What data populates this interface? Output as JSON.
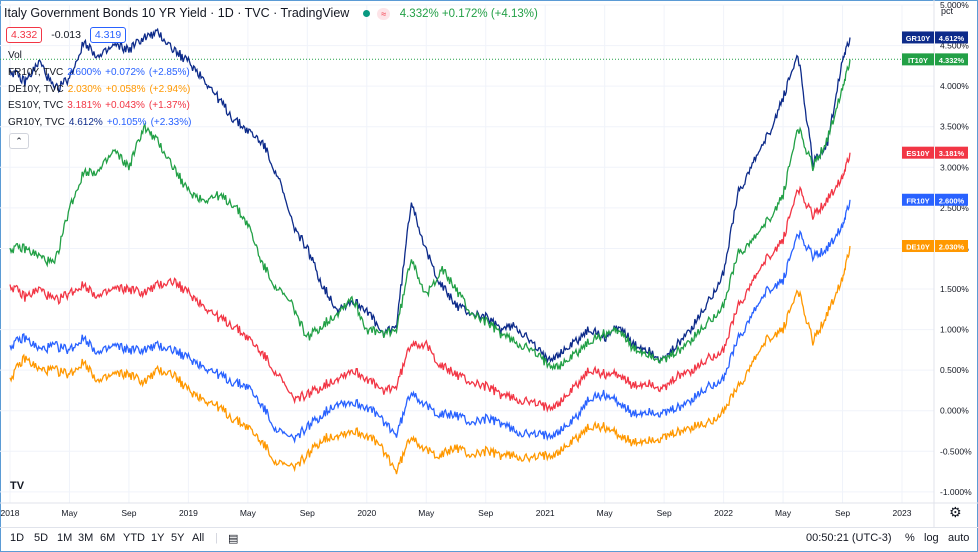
{
  "header": {
    "title": "Italy Government Bonds 10 YR Yield · 1D · TVC · TradingView",
    "last_change": "4.332% +0.172% (+4.13%)",
    "badge": "≈"
  },
  "trade": {
    "sell": "4.332",
    "spread": "-0.013",
    "buy": "4.319"
  },
  "legend": {
    "vol": "Vol",
    "rows": [
      {
        "sym": "FR10Y, TVC",
        "val": "2.600%",
        "chg": "+0.072%",
        "pct": "(+2.85%)",
        "color": "#2962ff"
      },
      {
        "sym": "DE10Y, TVC",
        "val": "2.030%",
        "chg": "+0.058%",
        "pct": "(+2.94%)",
        "color": "#ff9800"
      },
      {
        "sym": "ES10Y, TVC",
        "val": "3.181%",
        "chg": "+0.043%",
        "pct": "(+1.37%)",
        "color": "#f23645"
      },
      {
        "sym": "GR10Y, TVC",
        "val": "4.612%",
        "chg": "+0.105%",
        "pct": "(+2.33%)",
        "color": "#0d2b8a"
      }
    ]
  },
  "collapse_icon": "chevron-up",
  "logo": "TV",
  "bottom": {
    "timeframes": [
      "1D",
      "5D",
      "1M",
      "3M",
      "6M",
      "YTD",
      "1Y",
      "5Y",
      "All"
    ],
    "clock": "00:50:21 (UTC-3)",
    "pct": "%",
    "log": "log",
    "auto": "auto"
  },
  "chart_data": {
    "type": "line",
    "yunit": "pct",
    "ylim": [
      -1.1,
      5.0
    ],
    "yticks": [
      "5.000%",
      "4.500%",
      "4.000%",
      "3.500%",
      "3.000%",
      "2.500%",
      "2.000%",
      "1.500%",
      "1.000%",
      "0.500%",
      "0.000%",
      "-0.500%",
      "-1.000%"
    ],
    "ytick_values": [
      5.0,
      4.5,
      4.0,
      3.5,
      3.0,
      2.5,
      2.0,
      1.5,
      1.0,
      0.5,
      0.0,
      -0.5,
      -1.0
    ],
    "xticks": [
      "2018",
      "May",
      "Sep",
      "2019",
      "May",
      "Sep",
      "2020",
      "May",
      "Sep",
      "2021",
      "May",
      "Sep",
      "2022",
      "May",
      "Sep",
      "2023"
    ],
    "xtick_months": [
      0,
      4,
      8,
      12,
      16,
      20,
      24,
      28,
      32,
      36,
      40,
      44,
      48,
      52,
      56,
      60
    ],
    "xlim": [
      0,
      60
    ],
    "grid": true,
    "price_line": 4.332,
    "series": [
      {
        "name": "GR10Y",
        "label": "4.612%",
        "color": "#0d2b8a",
        "x": [
          0,
          1,
          2,
          3,
          4,
          5,
          6,
          7,
          8,
          9,
          10,
          11,
          12,
          13,
          14,
          15,
          16,
          17,
          18,
          19,
          20,
          21,
          22,
          23,
          24,
          25,
          26,
          27,
          28,
          29,
          30,
          31,
          32,
          33,
          34,
          35,
          36,
          37,
          38,
          39,
          40,
          41,
          42,
          43,
          44,
          45,
          46,
          47,
          48,
          49,
          50,
          51,
          52,
          53,
          54,
          55,
          56,
          56.5
        ],
        "y": [
          4.2,
          4.05,
          4.3,
          3.95,
          4.1,
          4.55,
          4.35,
          4.5,
          4.45,
          4.6,
          4.65,
          4.45,
          4.3,
          4.1,
          3.85,
          3.6,
          3.45,
          3.3,
          2.9,
          2.3,
          2.0,
          1.55,
          1.25,
          1.35,
          1.25,
          0.95,
          1.05,
          2.6,
          1.95,
          1.55,
          1.3,
          1.2,
          1.15,
          1.0,
          1.05,
          0.85,
          0.65,
          0.7,
          0.85,
          1.0,
          0.9,
          1.05,
          0.8,
          0.75,
          0.6,
          0.85,
          1.05,
          1.35,
          1.7,
          2.7,
          3.05,
          3.4,
          3.85,
          4.4,
          3.05,
          3.3,
          4.35,
          4.6
        ]
      },
      {
        "name": "IT10Y",
        "label": "4.332%",
        "color": "#22a046",
        "x": [
          0,
          1,
          2,
          3,
          4,
          5,
          6,
          7,
          8,
          9,
          10,
          11,
          12,
          13,
          14,
          15,
          16,
          17,
          18,
          19,
          20,
          21,
          22,
          23,
          24,
          25,
          26,
          27,
          28,
          29,
          30,
          31,
          32,
          33,
          34,
          35,
          36,
          37,
          38,
          39,
          40,
          41,
          42,
          43,
          44,
          45,
          46,
          47,
          48,
          49,
          50,
          51,
          52,
          53,
          54,
          55,
          56,
          56.5
        ],
        "y": [
          2.0,
          2.0,
          1.9,
          1.8,
          2.5,
          2.95,
          2.95,
          3.2,
          3.0,
          3.5,
          3.3,
          3.0,
          2.7,
          2.6,
          2.65,
          2.55,
          2.3,
          1.8,
          1.5,
          1.3,
          0.9,
          1.05,
          1.2,
          1.4,
          1.0,
          0.95,
          1.0,
          1.9,
          1.4,
          1.75,
          1.5,
          1.2,
          1.1,
          0.95,
          0.85,
          0.75,
          0.6,
          0.55,
          0.7,
          0.85,
          0.95,
          1.0,
          0.75,
          0.7,
          0.6,
          0.75,
          0.9,
          1.1,
          1.3,
          1.95,
          2.1,
          2.35,
          2.65,
          3.5,
          3.0,
          3.35,
          4.0,
          4.33
        ]
      },
      {
        "name": "ES10Y",
        "label": "3.181%",
        "color": "#f23645",
        "x": [
          0,
          1,
          2,
          3,
          4,
          5,
          6,
          7,
          8,
          9,
          10,
          11,
          12,
          13,
          14,
          15,
          16,
          17,
          18,
          19,
          20,
          21,
          22,
          23,
          24,
          25,
          26,
          27,
          28,
          29,
          30,
          31,
          32,
          33,
          34,
          35,
          36,
          37,
          38,
          39,
          40,
          41,
          42,
          43,
          44,
          45,
          46,
          47,
          48,
          49,
          50,
          51,
          52,
          53,
          54,
          55,
          56,
          56.5
        ],
        "y": [
          1.55,
          1.4,
          1.5,
          1.35,
          1.45,
          1.55,
          1.4,
          1.5,
          1.5,
          1.45,
          1.55,
          1.6,
          1.45,
          1.3,
          1.15,
          1.05,
          0.9,
          0.7,
          0.45,
          0.15,
          0.2,
          0.3,
          0.4,
          0.5,
          0.4,
          0.25,
          0.3,
          0.85,
          0.8,
          0.55,
          0.45,
          0.35,
          0.3,
          0.2,
          0.15,
          0.1,
          0.05,
          0.1,
          0.3,
          0.5,
          0.45,
          0.45,
          0.3,
          0.35,
          0.25,
          0.45,
          0.5,
          0.65,
          0.75,
          1.3,
          1.6,
          1.9,
          2.1,
          2.75,
          2.4,
          2.6,
          2.9,
          3.18
        ]
      },
      {
        "name": "FR10Y",
        "label": "2.600%",
        "color": "#2962ff",
        "x": [
          0,
          1,
          2,
          3,
          4,
          5,
          6,
          7,
          8,
          9,
          10,
          11,
          12,
          13,
          14,
          15,
          16,
          17,
          18,
          19,
          20,
          21,
          22,
          23,
          24,
          25,
          26,
          27,
          28,
          29,
          30,
          31,
          32,
          33,
          34,
          35,
          36,
          37,
          38,
          39,
          40,
          41,
          42,
          43,
          44,
          45,
          46,
          47,
          48,
          49,
          50,
          51,
          52,
          53,
          54,
          55,
          56,
          56.5
        ],
        "y": [
          0.8,
          0.9,
          0.75,
          0.8,
          0.75,
          0.9,
          0.7,
          0.8,
          0.75,
          0.75,
          0.8,
          0.75,
          0.65,
          0.55,
          0.45,
          0.35,
          0.3,
          0.05,
          -0.25,
          -0.35,
          -0.2,
          -0.05,
          0.1,
          0.1,
          0.05,
          -0.1,
          -0.3,
          0.25,
          0.05,
          -0.05,
          -0.05,
          -0.15,
          -0.1,
          -0.15,
          -0.25,
          -0.3,
          -0.3,
          -0.25,
          -0.1,
          0.15,
          0.2,
          0.1,
          -0.05,
          0.0,
          -0.05,
          0.05,
          0.15,
          0.3,
          0.4,
          0.9,
          1.2,
          1.5,
          1.6,
          2.2,
          1.9,
          2.0,
          2.3,
          2.6
        ]
      },
      {
        "name": "DE10Y",
        "label": "2.030%",
        "color": "#ff9800",
        "x": [
          0,
          1,
          2,
          3,
          4,
          5,
          6,
          7,
          8,
          9,
          10,
          11,
          12,
          13,
          14,
          15,
          16,
          17,
          18,
          19,
          20,
          21,
          22,
          23,
          24,
          25,
          26,
          27,
          28,
          29,
          30,
          31,
          32,
          33,
          34,
          35,
          36,
          37,
          38,
          39,
          40,
          41,
          42,
          43,
          44,
          45,
          46,
          47,
          48,
          49,
          50,
          51,
          52,
          53,
          54,
          55,
          56,
          56.5
        ],
        "y": [
          0.4,
          0.65,
          0.5,
          0.5,
          0.45,
          0.6,
          0.35,
          0.45,
          0.45,
          0.35,
          0.5,
          0.45,
          0.25,
          0.15,
          0.05,
          -0.1,
          -0.2,
          -0.4,
          -0.65,
          -0.7,
          -0.55,
          -0.35,
          -0.3,
          -0.25,
          -0.3,
          -0.45,
          -0.75,
          -0.3,
          -0.5,
          -0.55,
          -0.45,
          -0.55,
          -0.5,
          -0.55,
          -0.55,
          -0.6,
          -0.55,
          -0.5,
          -0.35,
          -0.2,
          -0.2,
          -0.3,
          -0.4,
          -0.35,
          -0.35,
          -0.25,
          -0.2,
          -0.15,
          0.0,
          0.3,
          0.6,
          0.9,
          1.0,
          1.5,
          0.85,
          1.2,
          1.65,
          2.03
        ]
      }
    ]
  }
}
